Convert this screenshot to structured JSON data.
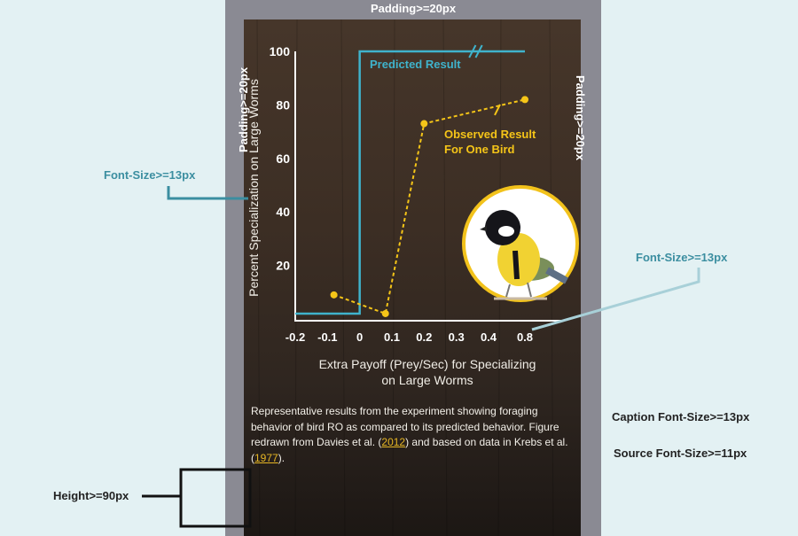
{
  "annotations": {
    "padding_top": "Padding>=20px",
    "padding_left": "Padding>=20px",
    "padding_right": "Padding>=20px",
    "font_size_left": "Font-Size>=13px",
    "font_size_right": "Font-Size>=13px",
    "caption_font": "Caption Font-Size>=13px",
    "source_font": "Source Font-Size>=11px",
    "height": "Height>=90px"
  },
  "caption": {
    "part1": "Representative results from the experiment showing foraging behavior of bird RO as compared to its predicted behavior. Figure redrawn from Davies et al. (",
    "cite1": "2012",
    "part2": ") and based on data in Krebs et al. (",
    "cite2": "1977",
    "part3": ")."
  },
  "colors": {
    "predicted": "#3fb3cc",
    "observed": "#f5c518",
    "axis": "#ffffff",
    "annotation_teal": "#3b8ea0"
  },
  "chart_data": {
    "type": "line",
    "title": "",
    "xlabel": "Extra Payoff (Prey/Sec) for Specializing on Large Worms",
    "ylabel": "Percent Specialization on Large Worms",
    "xlim": [
      -0.2,
      0.8
    ],
    "ylim": [
      0,
      100
    ],
    "x_ticks": [
      "-0.2",
      "-0.1",
      "0",
      "0.1",
      "0.2",
      "0.3",
      "0.4",
      "0.8"
    ],
    "y_ticks": [
      "20",
      "40",
      "60",
      "80",
      "100"
    ],
    "axis_break": "between 0.4 and 0.8",
    "series": [
      {
        "name": "Predicted Result",
        "style": "solid",
        "points": [
          [
            -0.2,
            2
          ],
          [
            0,
            2
          ],
          [
            0,
            100
          ],
          [
            0.8,
            100
          ]
        ]
      },
      {
        "name": "Observed Result For One Bird",
        "style": "dashed",
        "points": [
          [
            -0.08,
            9
          ],
          [
            0.08,
            2
          ],
          [
            0.2,
            73
          ],
          [
            0.8,
            82
          ]
        ]
      }
    ],
    "legend": "inline labels",
    "image": "bird-photo"
  }
}
